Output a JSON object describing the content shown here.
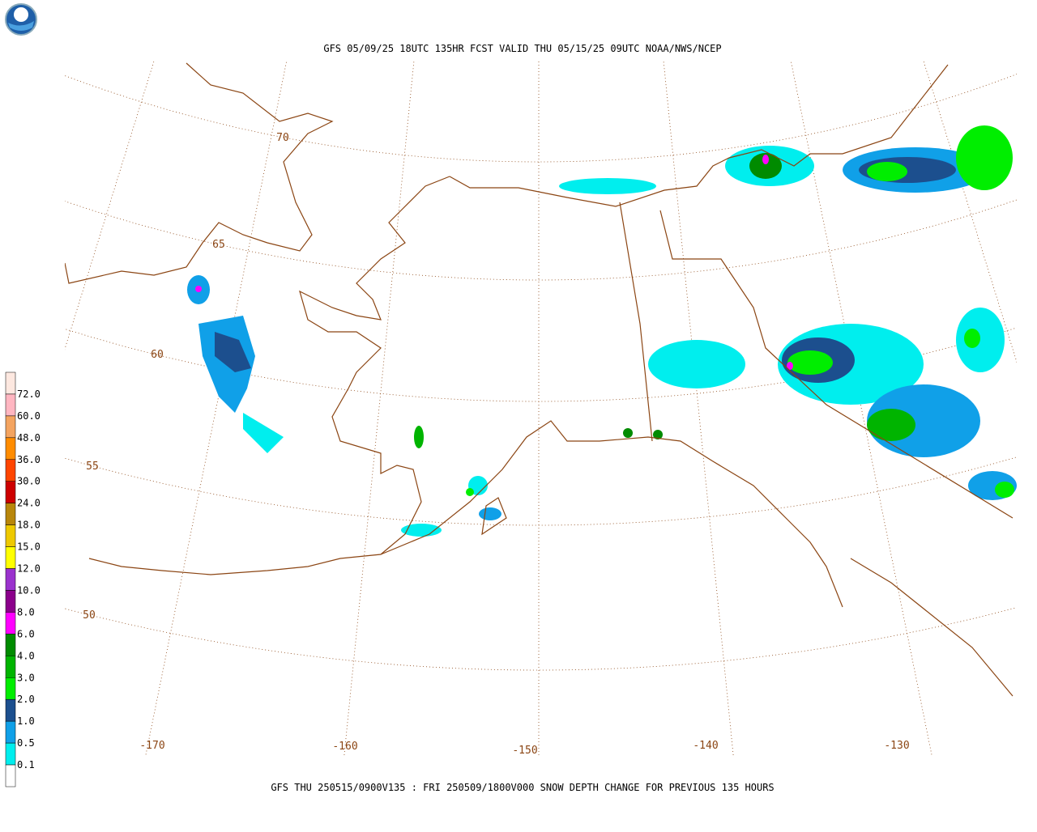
{
  "header": {
    "title": "GFS 05/09/25 18UTC 135HR FCST VALID THU 05/15/25 09UTC NOAA/NWS/NCEP"
  },
  "footer": {
    "text": "GFS THU 250515/0900V135 : FRI 250509/1800V000 SNOW DEPTH CHANGE FOR PREVIOUS 135 HOURS"
  },
  "legend": {
    "labels": [
      "72.0",
      "60.0",
      "48.0",
      "36.0",
      "30.0",
      "24.0",
      "18.0",
      "15.0",
      "12.0",
      "10.0",
      "8.0",
      "6.0",
      "4.0",
      "3.0",
      "2.0",
      "1.0",
      "0.5",
      "0.1"
    ],
    "colors": [
      "#fde8e0",
      "#ffb6c1",
      "#f4a460",
      "#ff8c00",
      "#ff4500",
      "#cd0000",
      "#b8860b",
      "#eec900",
      "#ffff00",
      "#9a32cd",
      "#8b008b",
      "#ff00ff",
      "#008b00",
      "#00b400",
      "#00ee00",
      "#1c4f8e",
      "#10a0e8",
      "#00eeee",
      "#ffffff"
    ]
  },
  "grid_labels": {
    "latitudes": [
      "70",
      "65",
      "60",
      "55",
      "50"
    ],
    "longitudes": [
      "-170",
      "-160",
      "-150",
      "-140",
      "-130"
    ]
  }
}
